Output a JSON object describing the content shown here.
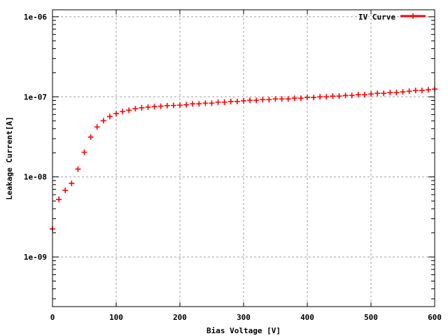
{
  "chart_data": {
    "type": "scatter",
    "title": "",
    "xlabel": "Bias Voltage [V]",
    "ylabel": "Leakage Current[A]",
    "xlim": [
      0,
      600
    ],
    "ylim": [
      2.4e-10,
      1.22e-06
    ],
    "yscale": "log",
    "grid": true,
    "legend_position": "top-right",
    "x_ticks": [
      0,
      100,
      200,
      300,
      400,
      500,
      600
    ],
    "x_tick_labels": [
      "0",
      "100",
      "200",
      "300",
      "400",
      "500",
      "600"
    ],
    "y_ticks": [
      1e-09,
      1e-08,
      1e-07,
      1e-06
    ],
    "y_tick_labels": [
      "1e-09",
      "1e-08",
      "1e-07",
      "1e-06"
    ],
    "series": [
      {
        "name": "IV Curve",
        "color": "#ff0000",
        "marker": "plus",
        "x": [
          0,
          10,
          20,
          30,
          40,
          50,
          60,
          70,
          80,
          90,
          100,
          110,
          120,
          130,
          140,
          150,
          160,
          170,
          180,
          190,
          200,
          210,
          220,
          230,
          240,
          250,
          260,
          270,
          280,
          290,
          300,
          310,
          320,
          330,
          340,
          350,
          360,
          370,
          380,
          390,
          400,
          410,
          420,
          430,
          440,
          450,
          460,
          470,
          480,
          490,
          500,
          510,
          520,
          530,
          540,
          550,
          560,
          570,
          580,
          590,
          600
        ],
        "y": [
          2.24e-09,
          5.24e-09,
          6.8e-09,
          8.3e-09,
          1.25e-08,
          2.03e-08,
          3.14e-08,
          4.2e-08,
          5.03e-08,
          5.68e-08,
          6.16e-08,
          6.54e-08,
          6.8e-08,
          7.1e-08,
          7.28e-08,
          7.43e-08,
          7.54e-08,
          7.63e-08,
          7.75e-08,
          7.8e-08,
          7.85e-08,
          7.95e-08,
          8.17e-08,
          8.17e-08,
          8.33e-08,
          8.33e-08,
          8.56e-08,
          8.56e-08,
          8.73e-08,
          8.73e-08,
          8.91e-08,
          9.03e-08,
          9.03e-08,
          9.22e-08,
          9.22e-08,
          9.4e-08,
          9.4e-08,
          9.4e-08,
          9.6e-08,
          9.6e-08,
          9.8e-08,
          9.8e-08,
          1e-07,
          1e-07,
          1.02e-07,
          1.02e-07,
          1.04e-07,
          1.04e-07,
          1.062e-07,
          1.062e-07,
          1.083e-07,
          1.105e-07,
          1.105e-07,
          1.128e-07,
          1.128e-07,
          1.151e-07,
          1.175e-07,
          1.199e-07,
          1.199e-07,
          1.223e-07,
          1.248e-07
        ]
      }
    ]
  }
}
